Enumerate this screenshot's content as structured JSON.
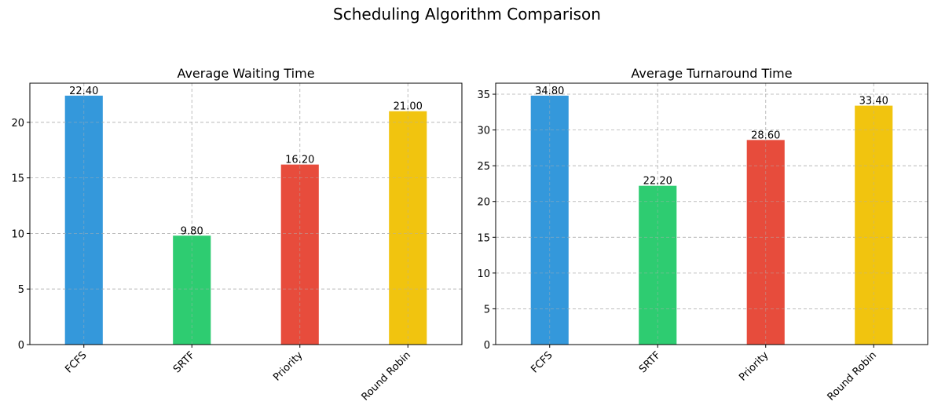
{
  "figure": {
    "suptitle": "Scheduling Algorithm Comparison"
  },
  "chart_data": [
    {
      "type": "bar",
      "title": "Average Waiting Time",
      "xlabel": "",
      "ylabel": "",
      "categories": [
        "FCFS",
        "SRTF",
        "Priority",
        "Round Robin"
      ],
      "values": [
        22.4,
        9.8,
        16.2,
        21.0
      ],
      "value_labels": [
        "22.40",
        "9.80",
        "16.20",
        "21.00"
      ],
      "colors": [
        "#3498db",
        "#2ecc71",
        "#e74c3c",
        "#f1c40f"
      ],
      "ylim": [
        0,
        23.52
      ],
      "yticks": [
        0,
        5,
        10,
        15,
        20
      ],
      "grid": true,
      "grid_style": "dashed"
    },
    {
      "type": "bar",
      "title": "Average Turnaround Time",
      "xlabel": "",
      "ylabel": "",
      "categories": [
        "FCFS",
        "SRTF",
        "Priority",
        "Round Robin"
      ],
      "values": [
        34.8,
        22.2,
        28.6,
        33.4
      ],
      "value_labels": [
        "34.80",
        "22.20",
        "28.60",
        "33.40"
      ],
      "colors": [
        "#3498db",
        "#2ecc71",
        "#e74c3c",
        "#f1c40f"
      ],
      "ylim": [
        0,
        36.54
      ],
      "yticks": [
        0,
        5,
        10,
        15,
        20,
        25,
        30,
        35
      ],
      "grid": true,
      "grid_style": "dashed"
    }
  ]
}
